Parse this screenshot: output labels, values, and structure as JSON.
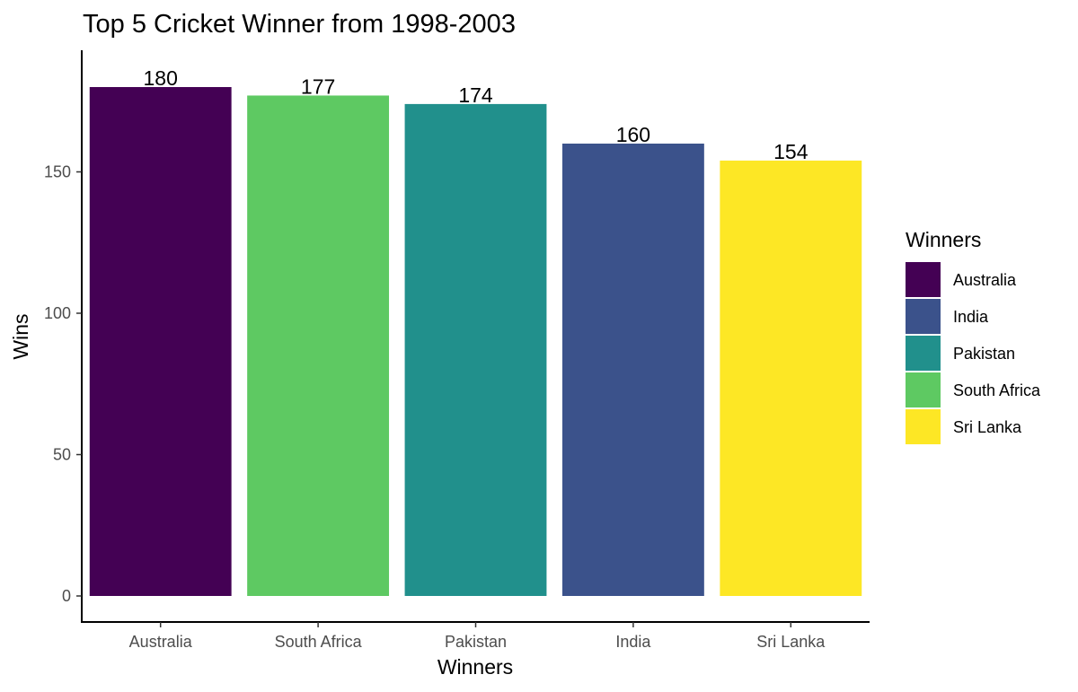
{
  "chart_data": {
    "type": "bar",
    "title": "Top 5 Cricket Winner from 1998-2003",
    "xlabel": "Winners",
    "ylabel": "Wins",
    "categories": [
      "Australia",
      "South Africa",
      "Pakistan",
      "India",
      "Sri Lanka"
    ],
    "values": [
      180,
      177,
      174,
      160,
      154
    ],
    "colors": [
      "#440154",
      "#5EC962",
      "#21908C",
      "#3B528B",
      "#FDE725"
    ],
    "ylim": [
      0,
      180
    ],
    "yticks": [
      0,
      50,
      100,
      150
    ],
    "grid": false,
    "legend": {
      "title": "Winners",
      "placement": "right",
      "entries": [
        {
          "label": "Australia",
          "color": "#440154"
        },
        {
          "label": "India",
          "color": "#3B528B"
        },
        {
          "label": "Pakistan",
          "color": "#21908C"
        },
        {
          "label": "South Africa",
          "color": "#5EC962"
        },
        {
          "label": "Sri Lanka",
          "color": "#FDE725"
        }
      ]
    }
  }
}
